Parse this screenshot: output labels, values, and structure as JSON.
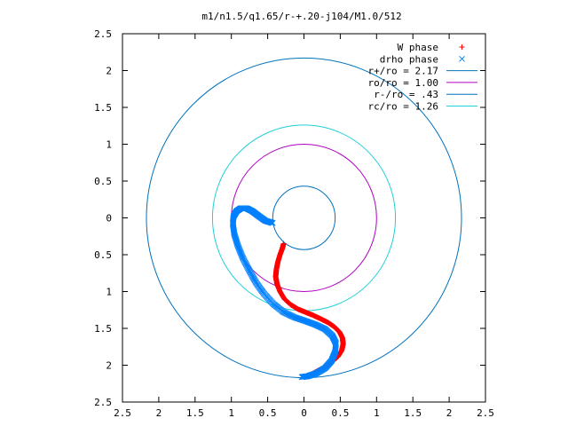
{
  "chart_data": {
    "type": "scatter",
    "title": "m1/n1.5/q1.65/r-+.20-j104/M1.0/512",
    "xlabel": "",
    "ylabel": "",
    "xlim": [
      -2.5,
      2.5
    ],
    "ylim": [
      -2.5,
      2.5
    ],
    "x_ticks": [
      -2.5,
      -2,
      -1.5,
      -1,
      -0.5,
      0,
      0.5,
      1,
      1.5,
      2,
      2.5
    ],
    "y_ticks": [
      2.5,
      2,
      1.5,
      1,
      0.5,
      0,
      -0.5,
      -1,
      -1.5,
      -2,
      -2.5
    ],
    "x_tick_labels": [
      "2.5",
      "2",
      "1.5",
      "1",
      "0.5",
      "0",
      "0.5",
      "1",
      "1.5",
      "2",
      "2.5"
    ],
    "y_tick_labels": [
      "2.5",
      "2",
      "1.5",
      "1",
      "0.5",
      "0",
      "0.5",
      "1",
      "1.5",
      "2",
      "2.5"
    ],
    "grid": false,
    "legend_position": "top-right",
    "series": [
      {
        "name": "W phase",
        "marker": "+",
        "color": "#ff0000",
        "points": [
          [
            -0.28,
            -0.35
          ],
          [
            -0.3,
            -0.42
          ],
          [
            -0.33,
            -0.5
          ],
          [
            -0.36,
            -0.6
          ],
          [
            -0.38,
            -0.7
          ],
          [
            -0.39,
            -0.8
          ],
          [
            -0.37,
            -0.9
          ],
          [
            -0.33,
            -1.0
          ],
          [
            -0.27,
            -1.1
          ],
          [
            -0.18,
            -1.18
          ],
          [
            -0.08,
            -1.24
          ],
          [
            0.02,
            -1.28
          ],
          [
            0.12,
            -1.32
          ],
          [
            0.23,
            -1.37
          ],
          [
            0.33,
            -1.42
          ],
          [
            0.42,
            -1.48
          ],
          [
            0.49,
            -1.55
          ],
          [
            0.53,
            -1.63
          ],
          [
            0.54,
            -1.71
          ],
          [
            0.52,
            -1.8
          ],
          [
            0.47,
            -1.88
          ],
          [
            0.39,
            -1.95
          ],
          [
            0.3,
            -2.02
          ],
          [
            0.2,
            -2.07
          ],
          [
            0.11,
            -2.12
          ],
          [
            0.0,
            -2.16
          ]
        ]
      },
      {
        "name": "drho phase",
        "marker": "x",
        "color": "#0080ff",
        "points": [
          [
            -0.43,
            -0.07
          ],
          [
            -0.53,
            -0.04
          ],
          [
            -0.63,
            0.03
          ],
          [
            -0.71,
            0.09
          ],
          [
            -0.79,
            0.13
          ],
          [
            -0.87,
            0.13
          ],
          [
            -0.93,
            0.09
          ],
          [
            -0.97,
            0.02
          ],
          [
            -0.98,
            -0.08
          ],
          [
            -0.96,
            -0.22
          ],
          [
            -0.91,
            -0.38
          ],
          [
            -0.84,
            -0.55
          ],
          [
            -0.75,
            -0.72
          ],
          [
            -0.66,
            -0.88
          ],
          [
            -0.55,
            -1.03
          ],
          [
            -0.42,
            -1.17
          ],
          [
            -0.28,
            -1.28
          ],
          [
            -0.13,
            -1.35
          ],
          [
            0.02,
            -1.4
          ],
          [
            0.16,
            -1.45
          ],
          [
            0.29,
            -1.51
          ],
          [
            0.39,
            -1.6
          ],
          [
            0.44,
            -1.7
          ],
          [
            0.43,
            -1.82
          ],
          [
            0.38,
            -1.94
          ],
          [
            0.29,
            -2.04
          ],
          [
            0.17,
            -2.11
          ],
          [
            0.05,
            -2.15
          ],
          [
            -0.03,
            -2.16
          ]
        ]
      },
      {
        "name": "r+/ro = 2.17",
        "type": "circle",
        "radius": 2.17,
        "color": "#0072bd"
      },
      {
        "name": "ro/ro = 1.00",
        "type": "circle",
        "radius": 1.0,
        "color": "#b000c0"
      },
      {
        "name": "r-/ro = .43",
        "type": "circle",
        "radius": 0.43,
        "color": "#0072bd"
      },
      {
        "name": "rc/ro = 1.26",
        "type": "circle",
        "radius": 1.26,
        "color": "#20d0d8"
      }
    ]
  }
}
